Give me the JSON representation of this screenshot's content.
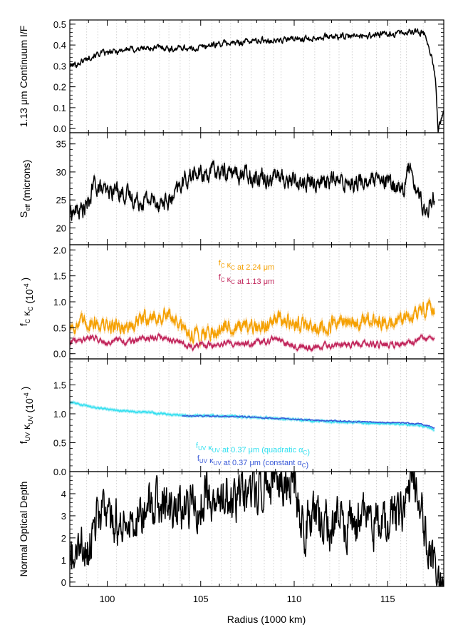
{
  "figure": {
    "xlabel": "Radius (1000 km)",
    "xlim": [
      98,
      118
    ],
    "xticks": [
      100,
      105,
      110,
      115
    ],
    "xtick_labels": [
      "100",
      "105",
      "110",
      "115"
    ],
    "minor_vlines": [
      98.9,
      99.5,
      100.5,
      101.1,
      101.6,
      102.0,
      102.8,
      103.3,
      103.9,
      104.4,
      105.6,
      106.1,
      106.6,
      107.2,
      107.7,
      108.4,
      108.9,
      109.3,
      110.5,
      111.1,
      111.9,
      112.4,
      113.1,
      113.8,
      114.4,
      115.1,
      115.7,
      116.0,
      116.9
    ]
  },
  "colors": {
    "black": "#000000",
    "orange": "#f5a000",
    "crimson": "#c0245a",
    "cyan": "#2fe0f0",
    "blue": "#3a5ad8",
    "band_gray": "#b4b4b4",
    "band_orange": "#f7cf8c",
    "band_crimson": "#e7a0b8",
    "band_cyan": "#a6eef6",
    "gridline": "#d2d2d2"
  },
  "chart_data": [
    {
      "type": "line",
      "ylabel_text": "1.13 μm Continuum I/F",
      "ylim": [
        -0.02,
        0.52
      ],
      "yticks": [
        0.0,
        0.1,
        0.2,
        0.3,
        0.4,
        0.5
      ],
      "ytick_labels": [
        "0.0",
        "0.1",
        "0.2",
        "0.3",
        "0.4",
        "0.5"
      ],
      "series": [
        {
          "color_key": "black",
          "x": [
            98.0,
            98.4,
            98.8,
            99.2,
            99.6,
            100.0,
            100.5,
            101.0,
            101.5,
            102.0,
            102.5,
            103.0,
            103.5,
            104.0,
            104.5,
            105.0,
            105.5,
            106.0,
            106.5,
            107.0,
            107.5,
            108.0,
            108.5,
            109.0,
            109.5,
            110.0,
            110.5,
            111.0,
            111.5,
            112.0,
            112.5,
            113.0,
            113.5,
            114.0,
            114.5,
            115.0,
            115.5,
            116.0,
            116.4,
            116.8,
            117.0,
            117.2,
            117.4,
            117.55,
            117.7,
            117.85,
            118.0
          ],
          "y": [
            0.3,
            0.31,
            0.33,
            0.35,
            0.36,
            0.36,
            0.37,
            0.38,
            0.38,
            0.385,
            0.385,
            0.39,
            0.38,
            0.39,
            0.38,
            0.39,
            0.4,
            0.405,
            0.41,
            0.41,
            0.42,
            0.42,
            0.425,
            0.42,
            0.425,
            0.43,
            0.43,
            0.435,
            0.44,
            0.44,
            0.44,
            0.44,
            0.445,
            0.445,
            0.45,
            0.45,
            0.455,
            0.46,
            0.465,
            0.46,
            0.45,
            0.4,
            0.32,
            0.25,
            -0.01,
            0.04,
            0.08
          ],
          "noise": 0.012
        }
      ]
    },
    {
      "type": "line",
      "ylabel_text": "S",
      "ylabel_sub": "eff",
      "ylabel_rest": " (microns)",
      "ylim": [
        17,
        37
      ],
      "yticks": [
        20,
        25,
        30,
        35
      ],
      "ytick_labels": [
        "20",
        "25",
        "30",
        "35"
      ],
      "series": [
        {
          "color_key": "black",
          "band_key": "band_gray",
          "band": 0.5,
          "x": [
            98.0,
            98.5,
            99.0,
            99.3,
            99.6,
            100.0,
            100.5,
            101.0,
            101.5,
            102.0,
            102.5,
            103.0,
            103.5,
            104.0,
            104.5,
            105.0,
            105.5,
            106.0,
            106.5,
            107.0,
            107.5,
            108.0,
            108.5,
            109.0,
            109.5,
            110.0,
            110.5,
            111.0,
            111.5,
            112.0,
            112.5,
            113.0,
            113.5,
            114.0,
            114.5,
            115.0,
            115.5,
            115.9,
            116.2,
            116.5,
            116.8,
            117.0,
            117.3,
            117.5
          ],
          "y": [
            23.0,
            23.0,
            24.0,
            28.0,
            27.0,
            26.0,
            27.0,
            26.0,
            25.0,
            25.0,
            25.0,
            24.5,
            25.0,
            28.0,
            29.5,
            29.5,
            30.0,
            30.0,
            30.0,
            29.5,
            29.5,
            29.5,
            29.0,
            29.5,
            28.5,
            28.5,
            28.0,
            28.0,
            28.5,
            28.5,
            28.0,
            28.5,
            28.0,
            28.5,
            28.0,
            28.0,
            27.5,
            27.0,
            32.0,
            27.0,
            25.0,
            22.0,
            25.0,
            26.0
          ],
          "noise": 1.3
        }
      ]
    },
    {
      "type": "line",
      "ylabel_text": "f",
      "ylabel_sub": "C",
      "ylabel_rest": " κ",
      "ylabel_sub2": "C",
      "ylabel_unit": " (10",
      "ylabel_sup": "-4",
      "ylabel_close": " )",
      "ylim": [
        -0.1,
        2.1
      ],
      "yticks": [
        0.0,
        0.5,
        1.0,
        1.5,
        2.0
      ],
      "ytick_labels": [
        "0.0",
        "0.5",
        "1.0",
        "1.5",
        "2.0"
      ],
      "legend": [
        {
          "pre": "f",
          "sub": "C",
          "mid": " κ",
          "sub2": "C",
          "post": " at 2.24 μm",
          "color_key": "orange"
        },
        {
          "pre": "f",
          "sub": "C",
          "mid": " κ",
          "sub2": "C",
          "post": " at 1.13 μm",
          "color_key": "crimson"
        }
      ],
      "series": [
        {
          "color_key": "orange",
          "band_key": "band_orange",
          "band": 0.07,
          "x": [
            98.0,
            98.5,
            99.0,
            99.5,
            100.0,
            100.5,
            101.0,
            101.5,
            102.0,
            102.5,
            103.0,
            103.5,
            104.0,
            104.5,
            105.0,
            105.5,
            106.0,
            106.5,
            107.0,
            107.5,
            108.0,
            108.5,
            109.0,
            109.5,
            110.0,
            110.5,
            111.0,
            111.5,
            112.0,
            112.5,
            113.0,
            113.5,
            114.0,
            114.5,
            115.0,
            115.5,
            116.0,
            116.4,
            116.8,
            117.2,
            117.5
          ],
          "y": [
            0.55,
            0.55,
            0.62,
            0.6,
            0.5,
            0.55,
            0.5,
            0.55,
            0.7,
            0.7,
            0.7,
            0.72,
            0.45,
            0.38,
            0.38,
            0.42,
            0.45,
            0.55,
            0.5,
            0.45,
            0.5,
            0.55,
            0.78,
            0.6,
            0.6,
            0.55,
            0.48,
            0.5,
            0.55,
            0.6,
            0.6,
            0.6,
            0.62,
            0.58,
            0.6,
            0.62,
            0.7,
            0.72,
            0.85,
            0.9,
            0.8
          ],
          "noise": 0.12
        },
        {
          "color_key": "crimson",
          "band_key": "band_crimson",
          "band": 0.04,
          "x": [
            98.0,
            98.5,
            99.0,
            99.5,
            100.0,
            100.5,
            101.0,
            101.5,
            102.0,
            102.5,
            103.0,
            103.5,
            104.0,
            104.5,
            105.0,
            105.5,
            106.0,
            106.5,
            107.0,
            107.5,
            108.0,
            108.5,
            109.0,
            109.5,
            110.0,
            110.5,
            111.0,
            111.5,
            112.0,
            112.5,
            113.0,
            113.5,
            114.0,
            114.5,
            115.0,
            115.5,
            116.0,
            116.4,
            116.8,
            117.2,
            117.5
          ],
          "y": [
            0.25,
            0.25,
            0.32,
            0.3,
            0.22,
            0.25,
            0.22,
            0.25,
            0.3,
            0.32,
            0.3,
            0.28,
            0.2,
            0.15,
            0.15,
            0.16,
            0.18,
            0.2,
            0.2,
            0.18,
            0.2,
            0.22,
            0.3,
            0.2,
            0.15,
            0.12,
            0.12,
            0.14,
            0.16,
            0.16,
            0.16,
            0.18,
            0.2,
            0.17,
            0.18,
            0.18,
            0.2,
            0.22,
            0.3,
            0.3,
            0.22
          ],
          "noise": 0.05
        }
      ]
    },
    {
      "type": "line",
      "ylabel_text": "f",
      "ylabel_sub": "UV",
      "ylabel_rest": " κ",
      "ylabel_sub2": "UV",
      "ylabel_unit": " (10",
      "ylabel_sup": "-4",
      "ylabel_close": " )",
      "ylim": [
        0.0,
        1.95
      ],
      "yticks": [
        0.0,
        0.5,
        1.0,
        1.5
      ],
      "ytick_labels": [
        "0.0",
        "0.5",
        "1.0",
        "1.5"
      ],
      "legend": [
        {
          "pre": "f",
          "sub": "UV",
          "mid": " κ",
          "sub2": "UV",
          "post": " at 0.37 μm (quadratic α",
          "sub3": "C",
          "close": ")",
          "color_key": "cyan"
        },
        {
          "pre": "f",
          "sub": "UV",
          "mid": " κ",
          "sub2": "UV",
          "post": " at 0.37 μm (constant α",
          "sub3": "C",
          "close": ")",
          "color_key": "blue"
        }
      ],
      "series": [
        {
          "color_key": "cyan",
          "band_key": "band_cyan",
          "band": 0.03,
          "x": [
            98.0,
            99.0,
            100.0,
            101.0,
            102.0,
            103.0,
            104.0,
            105.0,
            106.0,
            107.0,
            108.0,
            109.0,
            110.0,
            111.0,
            112.0,
            113.0,
            114.0,
            115.0,
            116.0,
            116.8,
            117.3,
            117.5
          ],
          "y": [
            1.2,
            1.13,
            1.08,
            1.05,
            1.03,
            1.0,
            0.97,
            0.97,
            0.96,
            0.95,
            0.94,
            0.92,
            0.9,
            0.88,
            0.86,
            0.85,
            0.84,
            0.83,
            0.82,
            0.8,
            0.75,
            0.7
          ],
          "noise": 0.012
        },
        {
          "color_key": "blue",
          "x": [
            104.0,
            105.0,
            106.0,
            107.0,
            108.0,
            109.0,
            110.0,
            111.0,
            112.0,
            113.0,
            114.0,
            115.0,
            116.0,
            116.8,
            117.3,
            117.5
          ],
          "y": [
            0.96,
            0.96,
            0.96,
            0.95,
            0.94,
            0.92,
            0.91,
            0.89,
            0.88,
            0.87,
            0.86,
            0.85,
            0.84,
            0.82,
            0.78,
            0.75
          ],
          "noise": 0.01
        }
      ]
    },
    {
      "type": "line",
      "ylabel_text": "Normal Optical Depth",
      "ylim": [
        -0.2,
        5.0
      ],
      "yticks": [
        0,
        1,
        2,
        3,
        4
      ],
      "ytick_labels": [
        "0",
        "1",
        "2",
        "3",
        "4"
      ],
      "series": [
        {
          "color_key": "black",
          "x": [
            98.0,
            98.5,
            99.0,
            99.5,
            100.0,
            100.5,
            101.0,
            101.5,
            102.0,
            102.5,
            103.0,
            103.5,
            104.0,
            104.5,
            105.0,
            105.5,
            106.0,
            106.5,
            107.0,
            107.5,
            108.0,
            108.5,
            109.0,
            109.5,
            110.0,
            110.5,
            111.0,
            111.5,
            112.0,
            112.5,
            113.0,
            113.5,
            114.0,
            114.5,
            115.0,
            115.5,
            116.0,
            116.3,
            116.6,
            116.9,
            117.2,
            117.5,
            117.8,
            118.0
          ],
          "y": [
            1.0,
            1.2,
            1.8,
            3.5,
            2.5,
            3.0,
            2.5,
            3.0,
            3.5,
            3.2,
            3.5,
            3.2,
            3.0,
            3.5,
            3.8,
            4.0,
            4.0,
            4.3,
            3.8,
            3.8,
            4.2,
            4.5,
            4.5,
            4.2,
            4.5,
            2.5,
            2.8,
            3.0,
            2.6,
            2.8,
            2.6,
            2.6,
            2.5,
            2.7,
            2.7,
            3.0,
            3.6,
            4.5,
            4.2,
            2.5,
            1.5,
            0.8,
            0.2,
            0.0
          ],
          "noise": 0.9,
          "clip": true
        }
      ]
    }
  ]
}
